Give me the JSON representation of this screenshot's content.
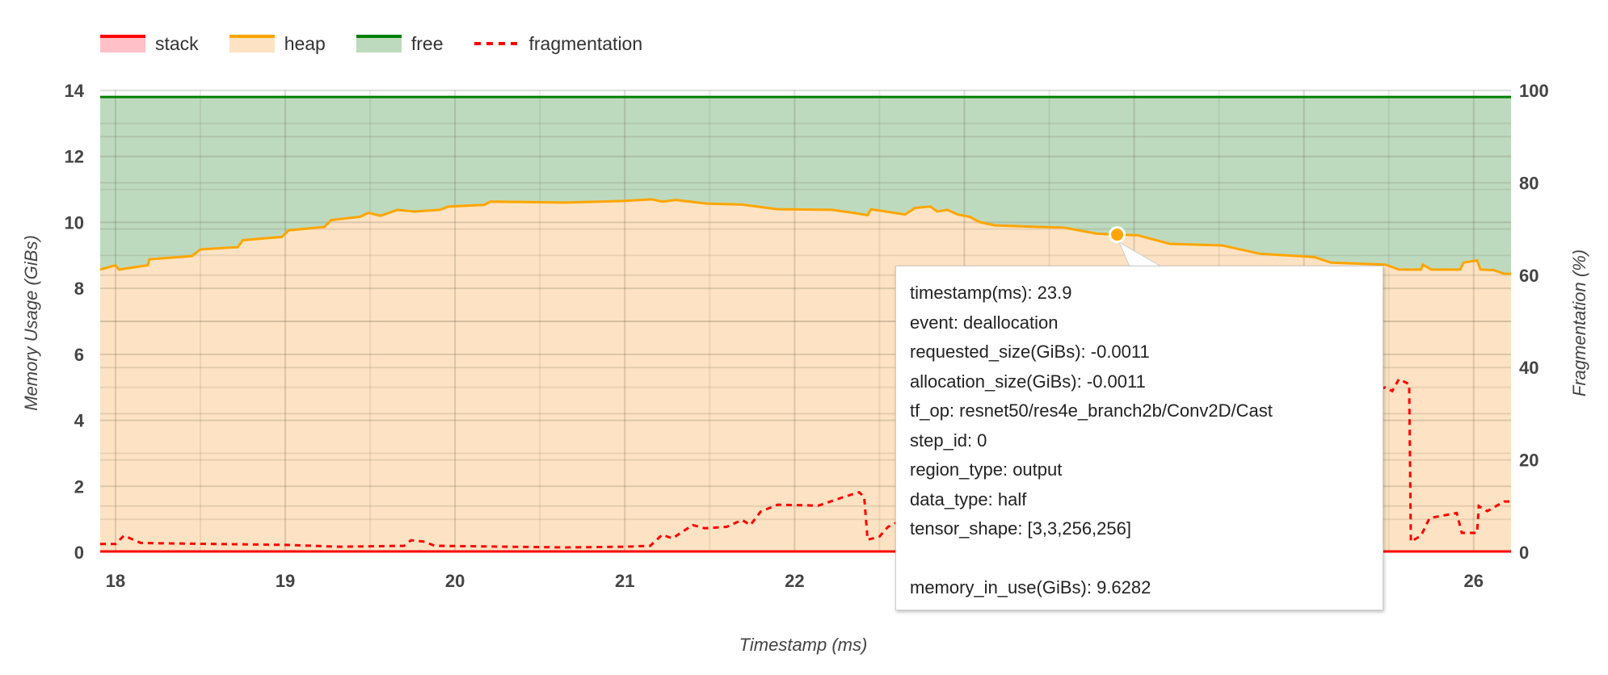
{
  "chart_data": {
    "type": "area",
    "xlabel": "Timestamp (ms)",
    "ylabel": "Memory Usage (GiBs)",
    "y2label": "Fragmentation (%)",
    "xlim": [
      17.91,
      26.22
    ],
    "ylim": [
      0,
      14
    ],
    "y2lim": [
      0,
      100
    ],
    "xticks": [
      18,
      19,
      20,
      21,
      22,
      23,
      24,
      25,
      26
    ],
    "visible_xtick_labels": [
      "18",
      "19",
      "20",
      "21",
      "22",
      "26"
    ],
    "yticks": [
      "0",
      "2",
      "4",
      "6",
      "8",
      "10",
      "12",
      "14"
    ],
    "y2ticks": [
      "0",
      "20",
      "40",
      "60",
      "80",
      "100"
    ],
    "grid": true,
    "legend_position": "top-left",
    "colors": {
      "stack": "#ff0000",
      "stack_fill": "#ffc0c8",
      "heap": "#ffa500",
      "heap_fill": "#fde3c3",
      "free": "#008000",
      "free_fill": "#bedabe",
      "fragmentation": "#ff0000"
    },
    "series": [
      {
        "name": "stack",
        "axis": "left",
        "x": [
          17.91,
          26.22
        ],
        "y": [
          0,
          0
        ]
      },
      {
        "name": "heap",
        "axis": "left",
        "x": [
          17.91,
          18.0,
          18.02,
          18.19,
          18.2,
          18.45,
          18.5,
          18.72,
          18.75,
          18.98,
          19.02,
          19.23,
          19.27,
          19.44,
          19.49,
          19.56,
          19.66,
          19.76,
          19.91,
          19.96,
          20.17,
          20.21,
          20.65,
          20.99,
          21.16,
          21.22,
          21.3,
          21.48,
          21.69,
          21.9,
          22.22,
          22.33,
          22.43,
          22.45,
          22.65,
          22.71,
          22.8,
          22.84,
          22.9,
          22.96,
          23.03,
          23.09,
          23.18,
          23.46,
          23.59,
          23.78,
          23.9,
          24.02,
          24.21,
          24.52,
          24.74,
          25.06,
          25.16,
          25.48,
          25.56,
          25.69,
          25.7,
          25.75,
          25.92,
          25.94,
          26.02,
          26.04,
          26.12,
          26.18,
          26.22
        ],
        "y": [
          8.57,
          8.7,
          8.57,
          8.7,
          8.88,
          8.98,
          9.18,
          9.25,
          9.46,
          9.56,
          9.76,
          9.86,
          10.07,
          10.17,
          10.29,
          10.2,
          10.38,
          10.33,
          10.38,
          10.48,
          10.53,
          10.63,
          10.6,
          10.65,
          10.7,
          10.63,
          10.68,
          10.57,
          10.54,
          10.4,
          10.38,
          10.3,
          10.22,
          10.4,
          10.24,
          10.44,
          10.48,
          10.33,
          10.38,
          10.24,
          10.17,
          10.01,
          9.91,
          9.86,
          9.84,
          9.66,
          9.6282,
          9.61,
          9.35,
          9.3,
          9.05,
          8.95,
          8.78,
          8.72,
          8.57,
          8.57,
          8.72,
          8.57,
          8.57,
          8.78,
          8.85,
          8.57,
          8.55,
          8.44,
          8.44
        ]
      },
      {
        "name": "free",
        "axis": "left",
        "upper": 13.8
      },
      {
        "name": "fragmentation",
        "axis": "right",
        "x": [
          17.91,
          18.0,
          18.05,
          18.15,
          19.0,
          19.32,
          19.7,
          19.74,
          19.82,
          19.88,
          20.65,
          21.0,
          21.15,
          21.22,
          21.28,
          21.4,
          21.47,
          21.6,
          21.69,
          21.74,
          21.8,
          21.9,
          22.14,
          22.3,
          22.38,
          22.41,
          22.43,
          22.5,
          22.55,
          22.64,
          25.48,
          25.52,
          25.56,
          25.62,
          25.63,
          25.69,
          25.74,
          25.9,
          25.93,
          26.02,
          26.03,
          26.08,
          26.18,
          26.22
        ],
        "y": [
          1.8,
          1.8,
          3.6,
          2.0,
          1.6,
          1.2,
          1.4,
          2.6,
          2.3,
          1.4,
          1.05,
          1.2,
          1.4,
          3.8,
          3.0,
          5.9,
          5.2,
          5.5,
          7.0,
          5.9,
          8.8,
          10.3,
          10.1,
          12.1,
          13.0,
          12.0,
          2.7,
          3.4,
          5.5,
          7.2,
          35.7,
          34.9,
          37.5,
          36.4,
          2.3,
          3.6,
          7.4,
          8.5,
          4.2,
          4.2,
          10.0,
          8.9,
          11.0,
          11.0
        ]
      }
    ],
    "highlight": {
      "x": 23.9,
      "y": 9.6282
    }
  },
  "legend": [
    {
      "label": "stack"
    },
    {
      "label": "heap"
    },
    {
      "label": "free"
    },
    {
      "label": "fragmentation"
    }
  ],
  "tooltip": {
    "lines": [
      "timestamp(ms): 23.9",
      "event: deallocation",
      "requested_size(GiBs): -0.0011",
      "allocation_size(GiBs): -0.0011",
      "tf_op: resnet50/res4e_branch2b/Conv2D/Cast",
      "step_id: 0",
      "region_type: output",
      "data_type: half",
      "tensor_shape: [3,3,256,256]",
      "",
      "memory_in_use(GiBs): 9.6282"
    ]
  }
}
